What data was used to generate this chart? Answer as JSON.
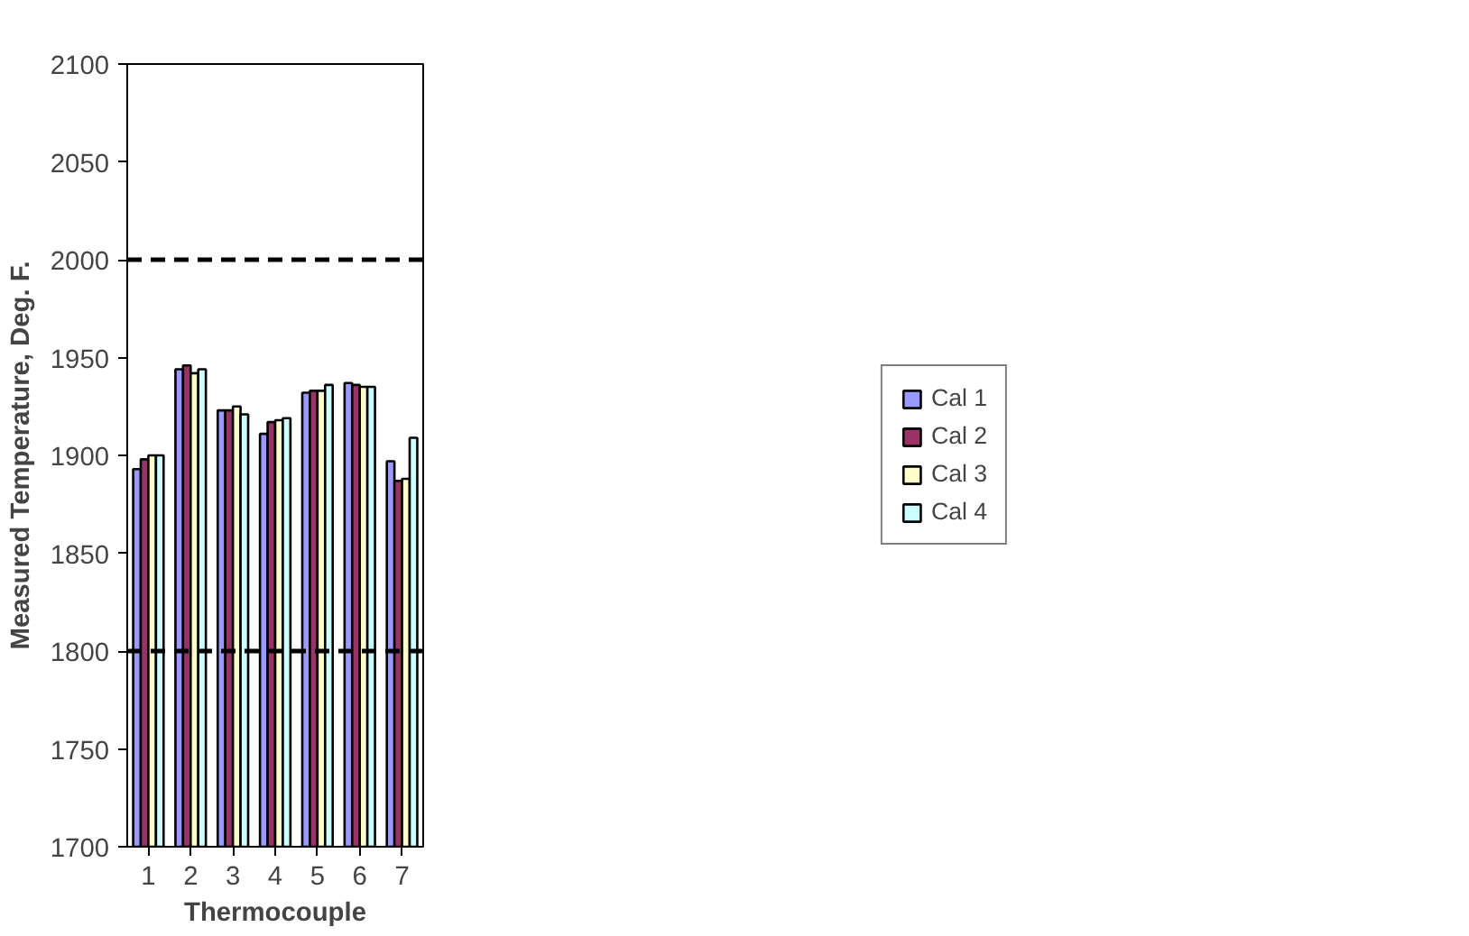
{
  "chart_data": {
    "type": "bar",
    "xlabel": "Thermocouple",
    "ylabel": "Measured Temperature, Deg. F.",
    "categories": [
      "1",
      "2",
      "3",
      "4",
      "5",
      "6",
      "7"
    ],
    "series": [
      {
        "name": "Cal 1",
        "color": "#9999ff",
        "values": [
          1893,
          1944,
          1923,
          1911,
          1932,
          1937,
          1897
        ]
      },
      {
        "name": "Cal 2",
        "color": "#993366",
        "values": [
          1898,
          1946,
          1923,
          1917,
          1933,
          1936,
          1887
        ]
      },
      {
        "name": "Cal 3",
        "color": "#ffffcc",
        "values": [
          1900,
          1942,
          1925,
          1918,
          1933,
          1935,
          1888
        ]
      },
      {
        "name": "Cal 4",
        "color": "#ccffff",
        "values": [
          1900,
          1944,
          1921,
          1919,
          1936,
          1935,
          1909
        ]
      }
    ],
    "ylim": [
      1700,
      2100
    ],
    "yticks": [
      1700,
      1750,
      1800,
      1850,
      1900,
      1950,
      2000,
      2050,
      2100
    ],
    "ref_lines": [
      {
        "axis": "y",
        "value": 2000,
        "color": "#000000",
        "line_style": "dashed"
      },
      {
        "axis": "y",
        "value": 1800,
        "color": "#000000",
        "line_style": "dashed"
      }
    ],
    "grid": false,
    "legend": "right"
  }
}
